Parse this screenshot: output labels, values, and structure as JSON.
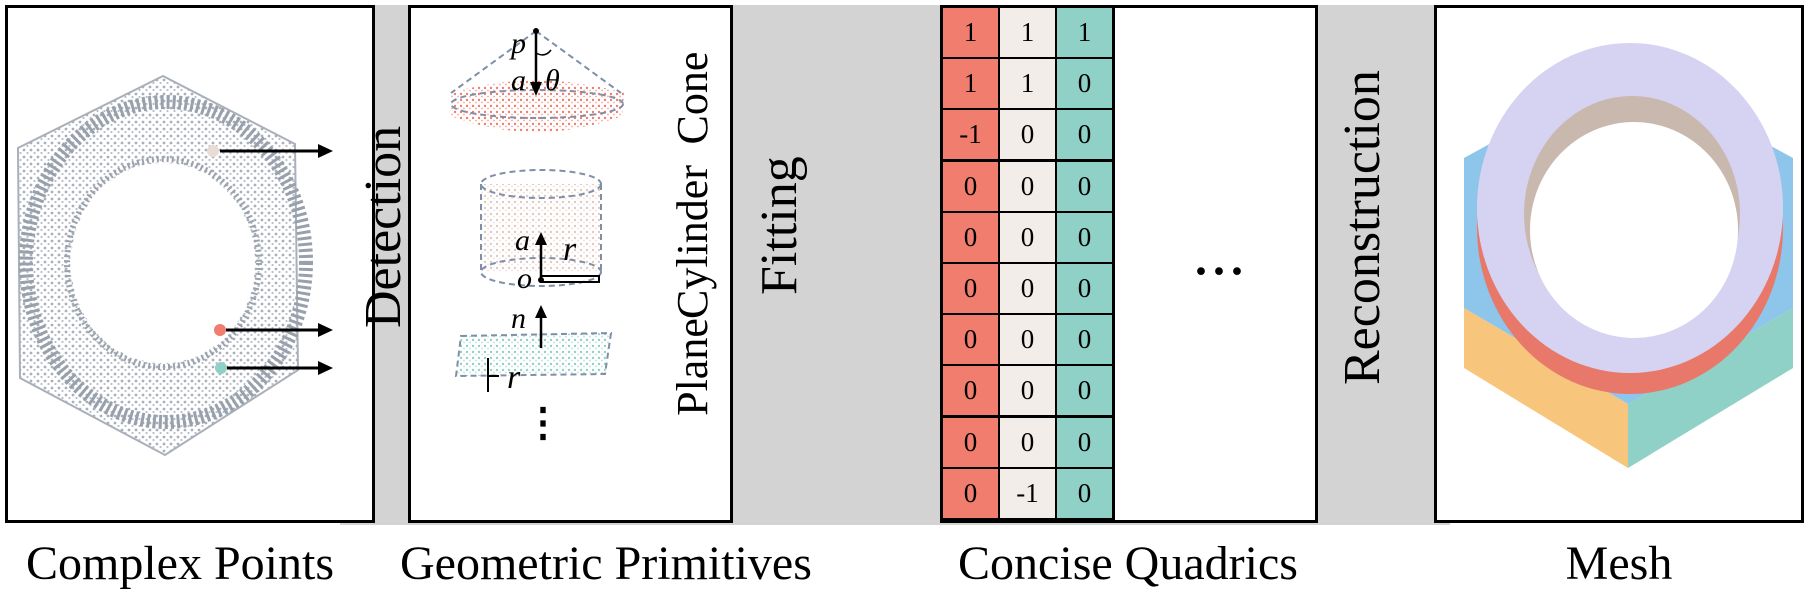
{
  "stages": {
    "detection": "Detection",
    "fitting": "Fitting",
    "reconstruction": "Reconstruction"
  },
  "captions": {
    "complex_points": "Complex Points",
    "geometric_primitives": "Geometric Primitives",
    "concise_quadrics": "Concise Quadrics",
    "mesh": "Mesh"
  },
  "primitives": {
    "cone": "Cone",
    "cylinder": "Cylinder",
    "plane": "Plane",
    "sym_p": "p",
    "sym_a1": "a",
    "sym_theta": "θ",
    "sym_a2": "a",
    "sym_r1": "r",
    "sym_o": "o",
    "sym_n": "n",
    "sym_r2": "r",
    "ellipsis": "⋮"
  },
  "quadrics": {
    "ellipsis": "···",
    "column_colors": [
      "#f07d6e",
      "#f2ede8",
      "#8fd1c6"
    ],
    "rows": [
      [
        "1",
        "1",
        "1"
      ],
      [
        "1",
        "1",
        "0"
      ],
      [
        "-1",
        "0",
        "0"
      ],
      [
        "0",
        "0",
        "0"
      ],
      [
        "0",
        "0",
        "0"
      ],
      [
        "0",
        "0",
        "0"
      ],
      [
        "0",
        "0",
        "0"
      ],
      [
        "0",
        "0",
        "0"
      ],
      [
        "0",
        "0",
        "0"
      ],
      [
        "0",
        "-1",
        "0"
      ]
    ]
  },
  "colors": {
    "point_gray": "#a9b0ba",
    "cone_red": "#f07d6e",
    "cylinder_beige": "#e8ddd6",
    "plane_teal": "#8fd1c6",
    "mesh_blue": "#8ec5ea",
    "mesh_lavender": "#d6d3f2",
    "mesh_orange": "#f7c67c",
    "mesh_teal": "#8fd1c6"
  }
}
